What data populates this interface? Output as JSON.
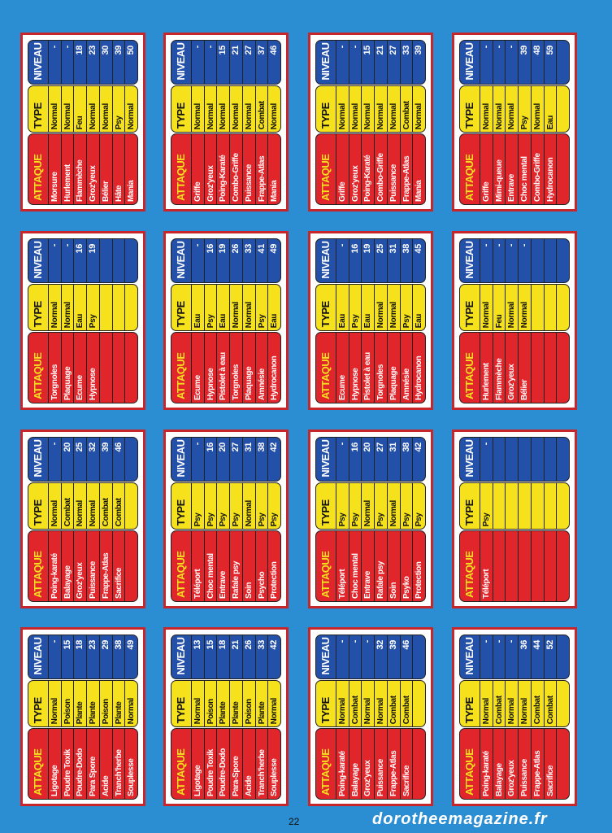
{
  "headers": [
    "ATTAQUE",
    "TYPE",
    "NIVEAU"
  ],
  "cards": [
    {
      "rows": [
        [
          "Morsure",
          "Normal",
          "-"
        ],
        [
          "Hurlement",
          "Normal",
          "-"
        ],
        [
          "Flammèche",
          "Feu",
          "18"
        ],
        [
          "Groz'yeux",
          "Normal",
          "23"
        ],
        [
          "Bélier",
          "Normal",
          "30"
        ],
        [
          "Hâte",
          "Psy",
          "39"
        ],
        [
          "Mania",
          "Normal",
          "50"
        ]
      ]
    },
    {
      "rows": [
        [
          "Griffe",
          "Normal",
          "-"
        ],
        [
          "Groz'yeux",
          "Normal",
          "-"
        ],
        [
          "Poing-Karaté",
          "Normal",
          "15"
        ],
        [
          "Combo-Griffe",
          "Normal",
          "21"
        ],
        [
          "Puissance",
          "Normal",
          "27"
        ],
        [
          "Frappe-Atlas",
          "Combat",
          "37"
        ],
        [
          "Mania",
          "Normal",
          "46"
        ]
      ]
    },
    {
      "rows": [
        [
          "Griffe",
          "Normal",
          "-"
        ],
        [
          "Groz'yeux",
          "Normal",
          "-"
        ],
        [
          "Poing-Karaté",
          "Normal",
          "15"
        ],
        [
          "Combo-Griffe",
          "Normal",
          "21"
        ],
        [
          "Puissance",
          "Normal",
          "27"
        ],
        [
          "Frappe-Atlas",
          "Combat",
          "33"
        ],
        [
          "Mania",
          "Normal",
          "39"
        ]
      ]
    },
    {
      "rows": [
        [
          "Griffe",
          "Normal",
          "-"
        ],
        [
          "Mimi-queue",
          "Normal",
          "-"
        ],
        [
          "Entrave",
          "Normal",
          "-"
        ],
        [
          "Choc mental",
          "Psy",
          "39"
        ],
        [
          "Combo-Griffe",
          "Normal",
          "48"
        ],
        [
          "Hydrocanon",
          "Eau",
          "59"
        ]
      ]
    },
    {
      "rows": [
        [
          "Torgnoles",
          "Normal",
          "-"
        ],
        [
          "Plaquage",
          "Normal",
          "-"
        ],
        [
          "Ecume",
          "Eau",
          "16"
        ],
        [
          "Hypnose",
          "Psy",
          "19"
        ]
      ]
    },
    {
      "rows": [
        [
          "Ecume",
          "Eau",
          "-"
        ],
        [
          "Hypnose",
          "Psy",
          "16"
        ],
        [
          "Pistolet à eau",
          "Eau",
          "19"
        ],
        [
          "Torgnoles",
          "Normal",
          "26"
        ],
        [
          "Plaquage",
          "Normal",
          "33"
        ],
        [
          "Amnésie",
          "Psy",
          "41"
        ],
        [
          "Hydrocanon",
          "Eau",
          "49"
        ]
      ]
    },
    {
      "rows": [
        [
          "Ecume",
          "Eau",
          "-"
        ],
        [
          "Hypnose",
          "Psy",
          "16"
        ],
        [
          "Pistolet à eau",
          "Eau",
          "19"
        ],
        [
          "Torgnoles",
          "Normal",
          "25"
        ],
        [
          "Plaquage",
          "Normal",
          "31"
        ],
        [
          "Amnésie",
          "Psy",
          "38"
        ],
        [
          "Hydrocanon",
          "Eau",
          "45"
        ]
      ]
    },
    {
      "rows": [
        [
          "Hurlement",
          "Normal",
          "-"
        ],
        [
          "Flammèche",
          "Feu",
          "-"
        ],
        [
          "Groz'yeux",
          "Normal",
          "-"
        ],
        [
          "Bélier",
          "Normal",
          "-"
        ]
      ]
    },
    {
      "rows": [
        [
          "Poing-karaté",
          "Normal",
          "-"
        ],
        [
          "Balayage",
          "Combat",
          "20"
        ],
        [
          "Groz'yeux",
          "Normal",
          "25"
        ],
        [
          "Puissance",
          "Normal",
          "32"
        ],
        [
          "Frappe-Atlas",
          "Combat",
          "39"
        ],
        [
          "Sacrifice",
          "Combat",
          "46"
        ]
      ]
    },
    {
      "rows": [
        [
          "Téléport",
          "Psy",
          "-"
        ],
        [
          "Choc mental",
          "Psy",
          "16"
        ],
        [
          "Entrave",
          "Psy",
          "20"
        ],
        [
          "Rafale psy",
          "Psy",
          "27"
        ],
        [
          "Soin",
          "Normal",
          "31"
        ],
        [
          "Psycho",
          "Psy",
          "38"
        ],
        [
          "Protection",
          "Psy",
          "42"
        ]
      ]
    },
    {
      "rows": [
        [
          "Téléport",
          "Psy",
          "-"
        ],
        [
          "Choc mental",
          "Psy",
          "16"
        ],
        [
          "Entrave",
          "Normal",
          "20"
        ],
        [
          "Rafale psy",
          "Psy",
          "27"
        ],
        [
          "Soin",
          "Normal",
          "31"
        ],
        [
          "Psyko",
          "Psy",
          "38"
        ],
        [
          "Protection",
          "Psy",
          "42"
        ]
      ]
    },
    {
      "rows": [
        [
          "Téléport",
          "Psy",
          "-"
        ]
      ]
    },
    {
      "rows": [
        [
          "Ligotage",
          "Normal",
          "-"
        ],
        [
          "Poudre Toxik",
          "Poison",
          "15"
        ],
        [
          "Poudre-Dodo",
          "Plante",
          "18"
        ],
        [
          "Para Spore",
          "Plante",
          "23"
        ],
        [
          "Acide",
          "Poison",
          "29"
        ],
        [
          "Tranch'herbe",
          "Plante",
          "38"
        ],
        [
          "Souplesse",
          "Normal",
          "49"
        ]
      ]
    },
    {
      "rows": [
        [
          "Ligotage",
          "Normal",
          "13"
        ],
        [
          "Poudre Toxik",
          "Poison",
          "15"
        ],
        [
          "Poudre-Dodo",
          "Plante",
          "18"
        ],
        [
          "Para-Spore",
          "Plante",
          "21"
        ],
        [
          "Acide",
          "Poison",
          "26"
        ],
        [
          "Tranch'herbe",
          "Plante",
          "33"
        ],
        [
          "Souplesse",
          "Normal",
          "42"
        ]
      ]
    },
    {
      "rows": [
        [
          "Poing-karaté",
          "Normal",
          "-"
        ],
        [
          "Balayage",
          "Combat",
          "-"
        ],
        [
          "Groz'yeux",
          "Normal",
          "-"
        ],
        [
          "Puissance",
          "Normal",
          "32"
        ],
        [
          "Frappe-Atlas",
          "Combat",
          "39"
        ],
        [
          "Sacrifice",
          "Combat",
          "46"
        ]
      ]
    },
    {
      "rows": [
        [
          "Poing-karaté",
          "Normal",
          "-"
        ],
        [
          "Balayage",
          "Combat",
          "-"
        ],
        [
          "Groz'yeux",
          "Normal",
          "-"
        ],
        [
          "Puissance",
          "Normal",
          "36"
        ],
        [
          "Frappe-Atlas",
          "Combat",
          "44"
        ],
        [
          "Sacrifice",
          "Combat",
          "52"
        ]
      ]
    }
  ],
  "page_number": "22",
  "watermark": "dorotheemagazine.fr"
}
